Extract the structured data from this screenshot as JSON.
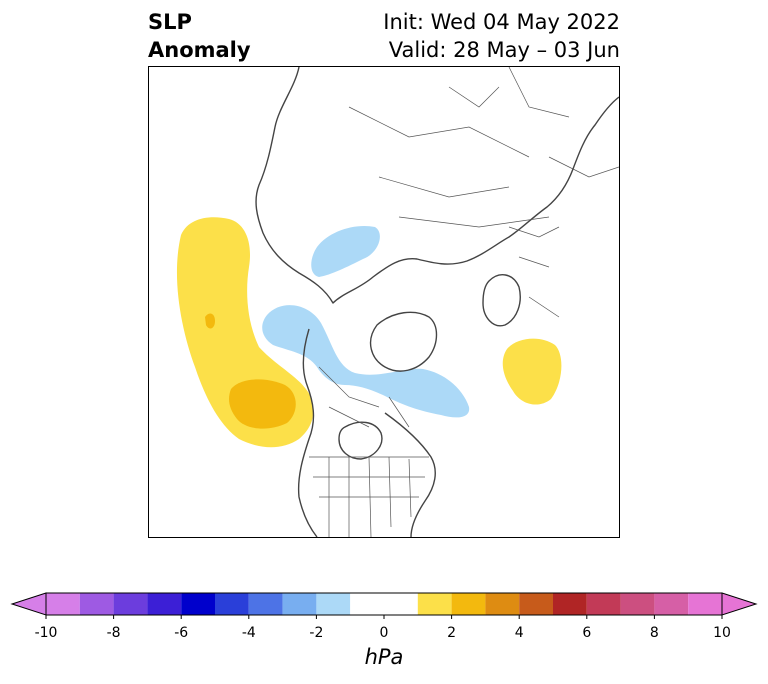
{
  "title": {
    "left_line1": "SLP",
    "left_line2": "Anomaly",
    "right_line1": "Init: Wed 04 May 2022",
    "right_line2": "Valid: 28 May – 03 Jun"
  },
  "map": {
    "projection": "north-polar-stereographic",
    "features": [
      "coastlines",
      "country-borders",
      "us-state-borders"
    ],
    "anomaly_regions": [
      {
        "name": "north-pacific-positive-outer",
        "value_range_hpa": [
          1,
          2
        ],
        "color": "#fce049"
      },
      {
        "name": "north-pacific-positive-core",
        "value_range_hpa": [
          2,
          3
        ],
        "color": "#f3b90e"
      },
      {
        "name": "north-atlantic-positive",
        "value_range_hpa": [
          1,
          2
        ],
        "color": "#fce049"
      },
      {
        "name": "canada-greenland-negative",
        "value_range_hpa": [
          -2,
          -1
        ],
        "color": "#acd9f7"
      },
      {
        "name": "siberia-negative",
        "value_range_hpa": [
          -2,
          -1
        ],
        "color": "#acd9f7"
      }
    ]
  },
  "colorbar": {
    "units": "hPa",
    "ticks": [
      "-10",
      "-8",
      "-6",
      "-4",
      "-2",
      "0",
      "2",
      "4",
      "6",
      "8",
      "10"
    ],
    "bins": [
      {
        "from": -10,
        "to": -9,
        "color": "#d67fe8"
      },
      {
        "from": -9,
        "to": -8,
        "color": "#9e5ae3"
      },
      {
        "from": -8,
        "to": -7,
        "color": "#6c3ddd"
      },
      {
        "from": -7,
        "to": -6,
        "color": "#3c1fd6"
      },
      {
        "from": -6,
        "to": -5,
        "color": "#0000cc"
      },
      {
        "from": -5,
        "to": -4,
        "color": "#2a3fd9"
      },
      {
        "from": -4,
        "to": -3,
        "color": "#4d73e6"
      },
      {
        "from": -3,
        "to": -2,
        "color": "#78aef0"
      },
      {
        "from": -2,
        "to": -1,
        "color": "#acd9f7"
      },
      {
        "from": -1,
        "to": 1,
        "color": "#ffffff"
      },
      {
        "from": 1,
        "to": 2,
        "color": "#fce049"
      },
      {
        "from": 2,
        "to": 3,
        "color": "#f3b90e"
      },
      {
        "from": 3,
        "to": 4,
        "color": "#de8c12"
      },
      {
        "from": 4,
        "to": 5,
        "color": "#c75b1b"
      },
      {
        "from": 5,
        "to": 6,
        "color": "#b02525"
      },
      {
        "from": 6,
        "to": 7,
        "color": "#c23a57"
      },
      {
        "from": 7,
        "to": 8,
        "color": "#cc4f80"
      },
      {
        "from": 8,
        "to": 9,
        "color": "#d65fa6"
      },
      {
        "from": 9,
        "to": 10,
        "color": "#e674d5"
      }
    ],
    "extend_low_color": "#d67fe8",
    "extend_high_color": "#e674d5"
  }
}
